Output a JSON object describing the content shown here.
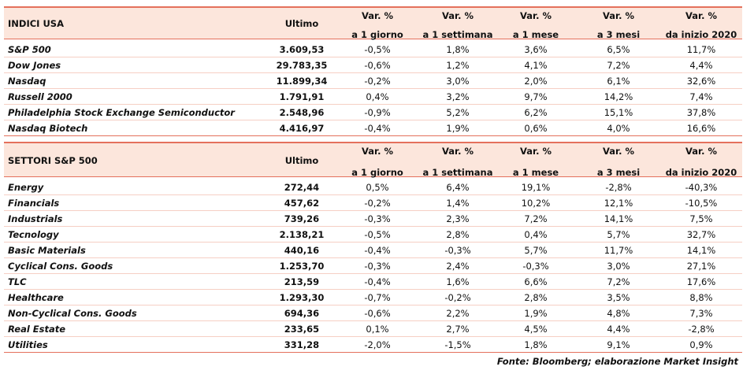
{
  "tables": [
    {
      "header": {
        "label": "INDICI USA",
        "columns": [
          [
            "Ultimo"
          ],
          [
            "Var. %",
            "a 1 giorno"
          ],
          [
            "Var. %",
            "a 1 settimana"
          ],
          [
            "Var. %",
            "a 1 mese"
          ],
          [
            "Var. %",
            "a 3 mesi"
          ],
          [
            "Var. %",
            "da inizio 2020"
          ]
        ]
      },
      "rows": [
        [
          "S&P 500",
          "3.609,53",
          "-0,5%",
          "1,8%",
          "3,6%",
          "6,5%",
          "11,7%"
        ],
        [
          "Dow Jones",
          "29.783,35",
          "-0,6%",
          "1,2%",
          "4,1%",
          "7,2%",
          "4,4%"
        ],
        [
          "Nasdaq",
          "11.899,34",
          "-0,2%",
          "3,0%",
          "2,0%",
          "6,1%",
          "32,6%"
        ],
        [
          "Russell 2000",
          "1.791,91",
          "0,4%",
          "3,2%",
          "9,7%",
          "14,2%",
          "7,4%"
        ],
        [
          "Philadelphia Stock Exchange Semiconductor",
          "2.548,96",
          "-0,9%",
          "5,2%",
          "6,2%",
          "15,1%",
          "37,8%"
        ],
        [
          "Nasdaq Biotech",
          "4.416,97",
          "-0,4%",
          "1,9%",
          "0,6%",
          "4,0%",
          "16,6%"
        ]
      ]
    },
    {
      "header": {
        "label": "SETTORI S&P 500",
        "columns": [
          [
            "Ultimo"
          ],
          [
            "Var. %",
            "a 1 giorno"
          ],
          [
            "Var. %",
            "a 1 settimana"
          ],
          [
            "Var. %",
            "a 1 mese"
          ],
          [
            "Var. %",
            "a 3 mesi"
          ],
          [
            "Var. %",
            "da inizio 2020"
          ]
        ]
      },
      "rows": [
        [
          "Energy",
          "272,44",
          "0,5%",
          "6,4%",
          "19,1%",
          "-2,8%",
          "-40,3%"
        ],
        [
          "Financials",
          "457,62",
          "-0,2%",
          "1,4%",
          "10,2%",
          "12,1%",
          "-10,5%"
        ],
        [
          "Industrials",
          "739,26",
          "-0,3%",
          "2,3%",
          "7,2%",
          "14,1%",
          "7,5%"
        ],
        [
          "Tecnology",
          "2.138,21",
          "-0,5%",
          "2,8%",
          "0,4%",
          "5,7%",
          "32,7%"
        ],
        [
          "Basic Materials",
          "440,16",
          "-0,4%",
          "-0,3%",
          "5,7%",
          "11,7%",
          "14,1%"
        ],
        [
          "Cyclical Cons. Goods",
          "1.253,70",
          "-0,3%",
          "2,4%",
          "-0,3%",
          "3,0%",
          "27,1%"
        ],
        [
          "TLC",
          "213,59",
          "-0,4%",
          "1,6%",
          "6,6%",
          "7,2%",
          "17,6%"
        ],
        [
          "Healthcare",
          "1.293,30",
          "-0,7%",
          "-0,2%",
          "2,8%",
          "3,5%",
          "8,8%"
        ],
        [
          "Non-Cyclical Cons. Goods",
          "694,36",
          "-0,6%",
          "2,2%",
          "1,9%",
          "4,8%",
          "7,3%"
        ],
        [
          "Real Estate",
          "233,65",
          "0,1%",
          "2,7%",
          "4,5%",
          "4,4%",
          "-2,8%"
        ],
        [
          "Utilities",
          "331,28",
          "-2,0%",
          "-1,5%",
          "1,8%",
          "9,1%",
          "0,9%"
        ]
      ]
    }
  ],
  "source": "Fonte: Bloomberg; elaborazione Market Insight"
}
